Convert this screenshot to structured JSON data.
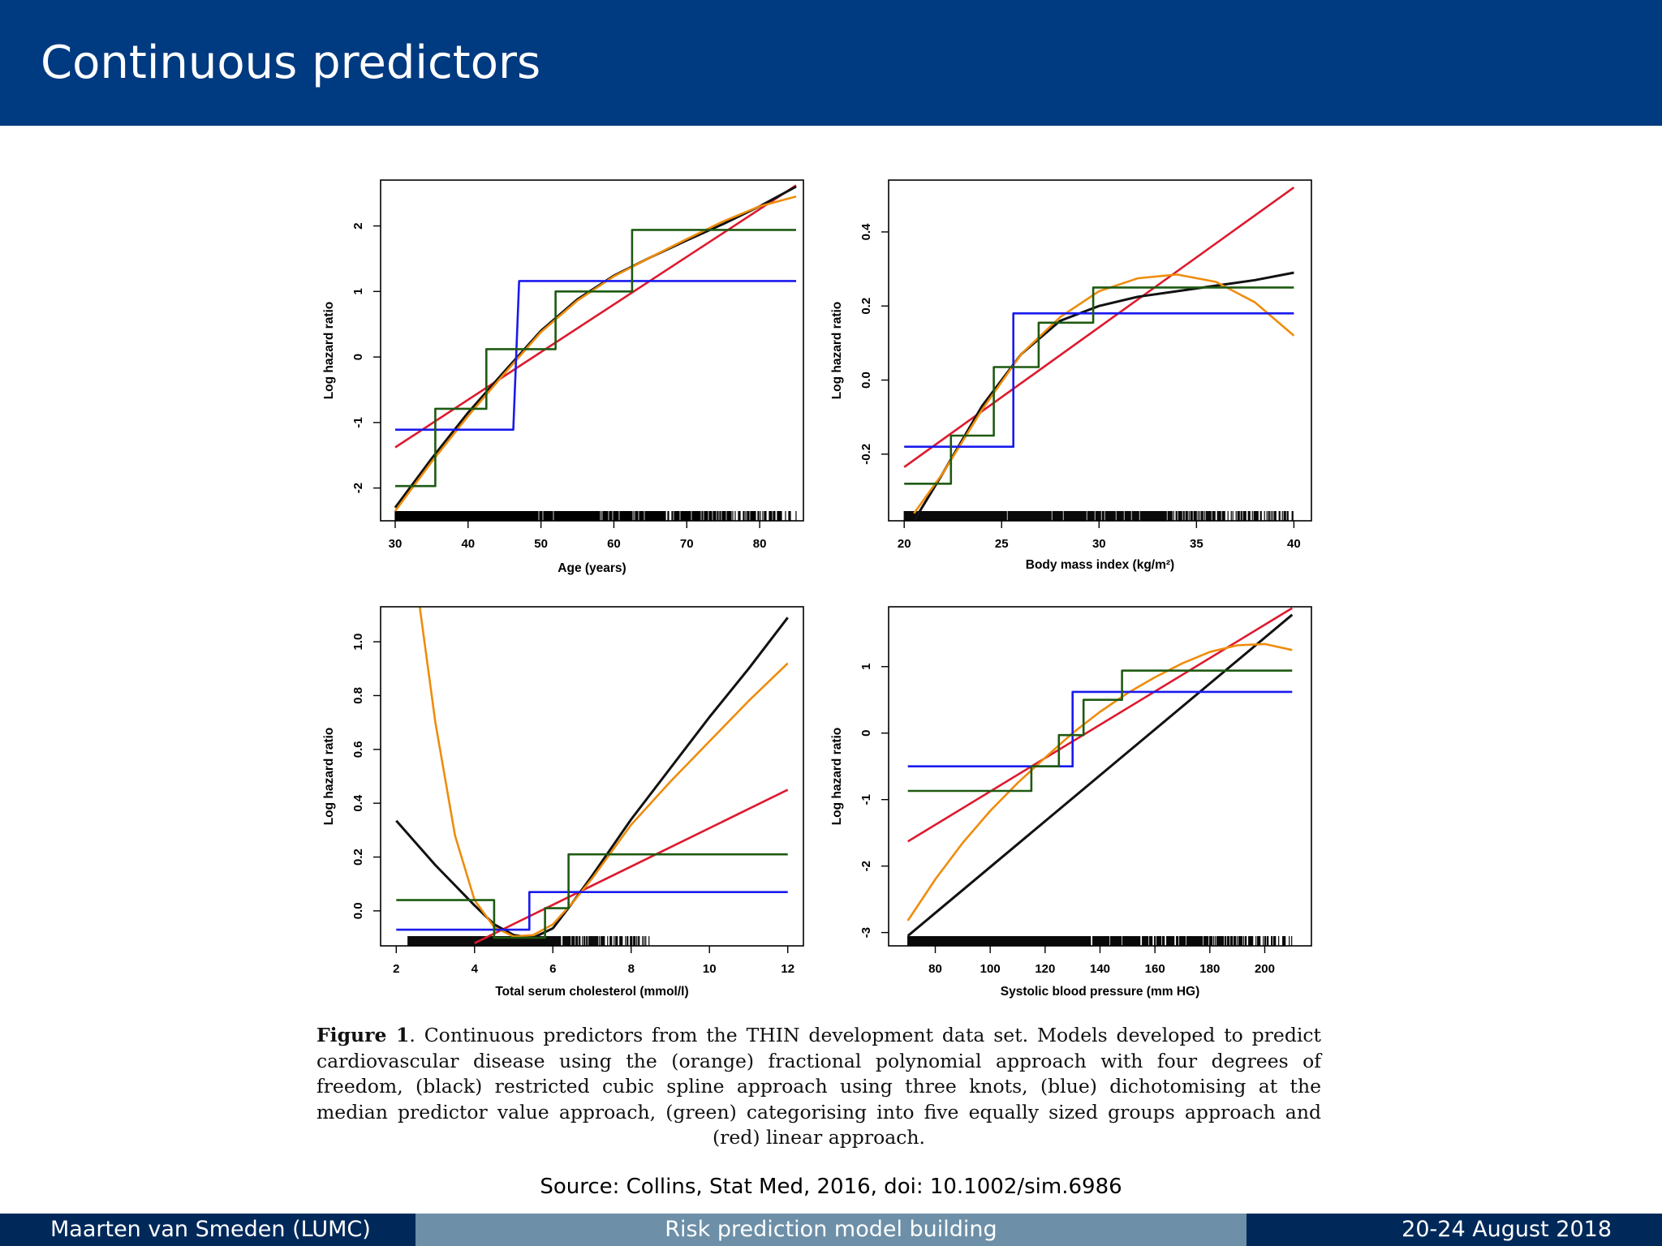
{
  "slide": {
    "title": "Continuous predictors",
    "source": "Source: Collins, Stat Med, 2016, doi: 10.1002/sim.6986"
  },
  "footer": {
    "author": "Maarten van Smeden  (LUMC)",
    "talk": "Risk prediction model building",
    "date": "20-24 August 2018"
  },
  "caption": {
    "label": "Figure 1",
    "text": ". Continuous predictors from the THIN development data set. Models developed to predict cardiovascular disease using the (orange) fractional polynomial approach with four degrees of freedom, (black) restricted cubic spline approach using three knots, (blue) dichotomising at the median predictor value approach, (green) categorising into five equally sized groups approach and (red) linear approach."
  },
  "colors": {
    "fp": "#ee8c0c",
    "spline": "#111111",
    "dichotomised": "#1a1aee",
    "categorised": "#1e5a12",
    "linear": "#dd1a2e"
  },
  "chart_data": [
    {
      "type": "line",
      "xlabel": "Age (years)",
      "ylabel": "Log hazard ratio",
      "xlim": [
        28,
        86
      ],
      "ylim": [
        -2.5,
        2.7
      ],
      "xticks": [
        30,
        40,
        50,
        60,
        70,
        80
      ],
      "yticks": [
        -2,
        -1,
        0,
        1,
        2
      ],
      "rug": [
        30,
        85
      ],
      "series": [
        {
          "key": "linear",
          "x": [
            30,
            85
          ],
          "y": [
            -1.38,
            2.62
          ]
        },
        {
          "key": "spline",
          "x": [
            30,
            35,
            40,
            45,
            50,
            55,
            60,
            65,
            70,
            75,
            80,
            85
          ],
          "y": [
            -2.3,
            -1.55,
            -0.85,
            -0.22,
            0.4,
            0.88,
            1.24,
            1.52,
            1.78,
            2.03,
            2.3,
            2.6
          ]
        },
        {
          "key": "fp",
          "x": [
            30,
            35,
            40,
            45,
            50,
            55,
            60,
            65,
            70,
            75,
            80,
            85
          ],
          "y": [
            -2.35,
            -1.6,
            -0.9,
            -0.25,
            0.38,
            0.86,
            1.23,
            1.52,
            1.8,
            2.07,
            2.3,
            2.45
          ]
        },
        {
          "key": "dichotomised",
          "x": [
            30,
            46.2,
            46.2,
            47,
            47,
            85
          ],
          "y": [
            -1.11,
            -1.11,
            -1.11,
            1.16,
            1.16,
            1.16
          ]
        },
        {
          "key": "categorised",
          "x": [
            30,
            35.5,
            35.5,
            42.5,
            42.5,
            52,
            52,
            62.5,
            62.5,
            85
          ],
          "y": [
            -1.97,
            -1.97,
            -0.79,
            -0.79,
            0.12,
            0.12,
            1.0,
            1.0,
            1.94,
            1.94
          ]
        }
      ]
    },
    {
      "type": "line",
      "xlabel": "Body mass index (kg/m²)",
      "ylabel": "Log hazard ratio",
      "xlim": [
        19.2,
        40.9
      ],
      "ylim": [
        -0.38,
        0.54
      ],
      "xticks": [
        20,
        25,
        30,
        35,
        40
      ],
      "yticks": [
        -0.2,
        0.0,
        0.2,
        0.4
      ],
      "ytick_labels": [
        "-0.2",
        "0.0",
        "0.2",
        "0.4"
      ],
      "rug": [
        20,
        40
      ],
      "series": [
        {
          "key": "linear",
          "x": [
            20,
            40
          ],
          "y": [
            -0.235,
            0.52
          ]
        },
        {
          "key": "spline",
          "x": [
            20.5,
            22,
            24,
            26,
            28,
            30,
            32,
            34,
            36,
            38,
            40
          ],
          "y": [
            -0.38,
            -0.25,
            -0.07,
            0.07,
            0.16,
            0.2,
            0.225,
            0.24,
            0.255,
            0.27,
            0.29
          ]
        },
        {
          "key": "fp",
          "x": [
            20.5,
            22,
            24,
            26,
            28,
            30,
            32,
            34,
            36,
            38,
            40
          ],
          "y": [
            -0.36,
            -0.25,
            -0.08,
            0.07,
            0.17,
            0.24,
            0.275,
            0.285,
            0.265,
            0.21,
            0.12
          ]
        },
        {
          "key": "dichotomised",
          "x": [
            20,
            25.6,
            25.6,
            40
          ],
          "y": [
            -0.18,
            -0.18,
            0.18,
            0.18
          ]
        },
        {
          "key": "categorised",
          "x": [
            20,
            22.4,
            22.4,
            24.6,
            24.6,
            26.9,
            26.9,
            29.7,
            29.7,
            40
          ],
          "y": [
            -0.28,
            -0.28,
            -0.15,
            -0.15,
            0.035,
            0.035,
            0.155,
            0.155,
            0.25,
            0.25
          ]
        }
      ]
    },
    {
      "type": "line",
      "xlabel": "Total serum cholesterol (mmol/l)",
      "ylabel": "Log hazard ratio",
      "xlim": [
        1.6,
        12.4
      ],
      "ylim": [
        -0.13,
        1.13
      ],
      "xticks": [
        2,
        4,
        6,
        8,
        10,
        12
      ],
      "yticks": [
        0.0,
        0.2,
        0.4,
        0.6,
        0.8,
        1.0
      ],
      "ytick_labels": [
        "0.0",
        "0.2",
        "0.4",
        "0.6",
        "0.8",
        "1.0"
      ],
      "rug": [
        2.3,
        8.5
      ],
      "series": [
        {
          "key": "linear",
          "x": [
            4,
            12
          ],
          "y": [
            -0.12,
            0.45
          ]
        },
        {
          "key": "spline",
          "x": [
            2,
            3,
            4,
            4.5,
            5,
            5.5,
            6,
            6.5,
            7,
            8,
            9,
            10,
            11,
            12
          ],
          "y": [
            0.335,
            0.17,
            0.02,
            -0.05,
            -0.09,
            -0.1,
            -0.065,
            0.03,
            0.13,
            0.34,
            0.53,
            0.72,
            0.9,
            1.09
          ]
        },
        {
          "key": "fp",
          "x": [
            2.6,
            3,
            3.5,
            4,
            4.5,
            5,
            5.5,
            6,
            6.5,
            7,
            8,
            9,
            10,
            11,
            12
          ],
          "y": [
            1.13,
            0.7,
            0.28,
            0.04,
            -0.06,
            -0.095,
            -0.09,
            -0.05,
            0.03,
            0.12,
            0.32,
            0.48,
            0.63,
            0.78,
            0.92
          ]
        },
        {
          "key": "dichotomised",
          "x": [
            2,
            5.4,
            5.4,
            12
          ],
          "y": [
            -0.07,
            -0.07,
            0.07,
            0.07
          ]
        },
        {
          "key": "categorised",
          "x": [
            2,
            4.5,
            4.5,
            5.8,
            5.8,
            6.4,
            6.4,
            12
          ],
          "y": [
            0.04,
            0.04,
            -0.1,
            -0.1,
            0.01,
            0.01,
            0.21,
            0.21
          ]
        }
      ]
    },
    {
      "type": "line",
      "xlabel": "Systolic blood pressure (mm HG)",
      "ylabel": "Log hazard ratio",
      "xlim": [
        63,
        217
      ],
      "ylim": [
        -3.2,
        1.9
      ],
      "xticks": [
        80,
        100,
        120,
        140,
        160,
        180,
        200
      ],
      "yticks": [
        -3,
        -2,
        -1,
        0,
        1
      ],
      "rug": [
        70,
        210
      ],
      "series": [
        {
          "key": "linear",
          "x": [
            70,
            210
          ],
          "y": [
            -1.63,
            1.88
          ]
        },
        {
          "key": "spline",
          "x": [
            70,
            210
          ],
          "y": [
            -3.05,
            1.78
          ]
        },
        {
          "key": "fp",
          "x": [
            70,
            80,
            90,
            100,
            110,
            120,
            130,
            140,
            150,
            160,
            170,
            180,
            190,
            200,
            210
          ],
          "y": [
            -2.82,
            -2.2,
            -1.65,
            -1.17,
            -0.75,
            -0.37,
            0.0,
            0.32,
            0.6,
            0.84,
            1.05,
            1.22,
            1.32,
            1.34,
            1.25
          ]
        },
        {
          "key": "dichotomised",
          "x": [
            70,
            130,
            130,
            210
          ],
          "y": [
            -0.5,
            -0.5,
            0.62,
            0.62
          ]
        },
        {
          "key": "categorised",
          "x": [
            70,
            115,
            115,
            125,
            125,
            134,
            134,
            148,
            148,
            210
          ],
          "y": [
            -0.87,
            -0.87,
            -0.5,
            -0.5,
            -0.03,
            -0.03,
            0.5,
            0.5,
            0.94,
            0.94
          ]
        }
      ]
    }
  ]
}
